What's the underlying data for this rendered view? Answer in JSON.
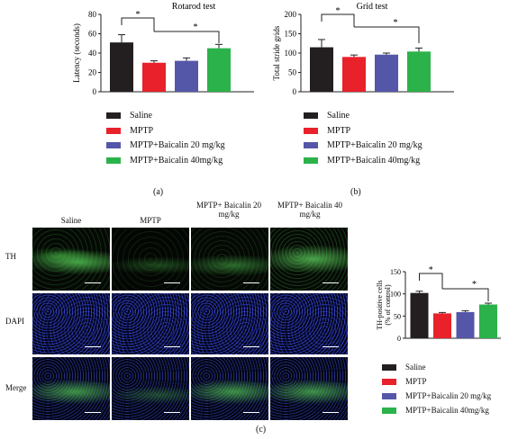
{
  "chart_data": [
    {
      "type": "bar",
      "title": "Rotarod test",
      "ylabel": "Latency (seconds)",
      "xlabel": "",
      "ylim": [
        0,
        80
      ],
      "yticks": [
        0,
        20,
        40,
        60,
        80
      ],
      "categories": [
        "Saline",
        "MPTP",
        "MPTP+Baicalin 20 mg/kg",
        "MPTP+Baicalin 40mg/kg"
      ],
      "values": [
        51,
        30,
        32,
        45
      ],
      "errors": [
        8,
        2,
        3,
        4
      ],
      "colors": [
        "#231f20",
        "#e8212a",
        "#5457a8",
        "#2bb24a"
      ],
      "significance": [
        "*",
        "*"
      ],
      "legend_position": "below",
      "grid": false
    },
    {
      "type": "bar",
      "title": "Grid test",
      "ylabel": "Total stride grids",
      "xlabel": "",
      "ylim": [
        0,
        200
      ],
      "yticks": [
        0,
        50,
        100,
        150,
        200
      ],
      "categories": [
        "Saline",
        "MPTP",
        "MPTP+Baicalin 20 mg/kg",
        "MPTP+Baicalin 40mg/kg"
      ],
      "values": [
        115,
        90,
        96,
        104
      ],
      "errors": [
        20,
        5,
        4,
        9
      ],
      "colors": [
        "#231f20",
        "#e8212a",
        "#5457a8",
        "#2bb24a"
      ],
      "significance": [
        "*",
        "*"
      ],
      "legend_position": "below",
      "grid": false
    },
    {
      "type": "bar",
      "title": "",
      "ylabel": "TH-positive cells (% of control)",
      "xlabel": "",
      "ylim": [
        0,
        150
      ],
      "yticks": [
        0,
        50,
        100,
        150
      ],
      "categories": [
        "Saline",
        "MPTP",
        "MPTP+Baicalin 20 mg/kg",
        "MPTP+Baicalin 40mg/kg"
      ],
      "values": [
        102,
        56,
        59,
        76
      ],
      "errors": [
        4,
        2,
        3,
        3
      ],
      "colors": [
        "#231f20",
        "#e8212a",
        "#5457a8",
        "#2bb24a"
      ],
      "significance": [
        "*",
        "*"
      ],
      "legend_position": "below",
      "grid": false
    }
  ],
  "panels": {
    "a": "(a)",
    "b": "(b)",
    "c": "(c)"
  },
  "micrograph": {
    "columns": [
      "Saline",
      "MPTP",
      "MPTP+ Baicalin 20 mg/kg",
      "MPTP+ Baicalin 40 mg/kg"
    ],
    "rows": [
      "TH",
      "DAPI",
      "Merge"
    ]
  },
  "legend": [
    {
      "label": "Saline",
      "color": "#231f20"
    },
    {
      "label": "MPTP",
      "color": "#e8212a"
    },
    {
      "label": "MPTP+Baicalin 20 mg/kg",
      "color": "#5457a8"
    },
    {
      "label": "MPTP+Baicalin 40mg/kg",
      "color": "#2bb24a"
    }
  ]
}
